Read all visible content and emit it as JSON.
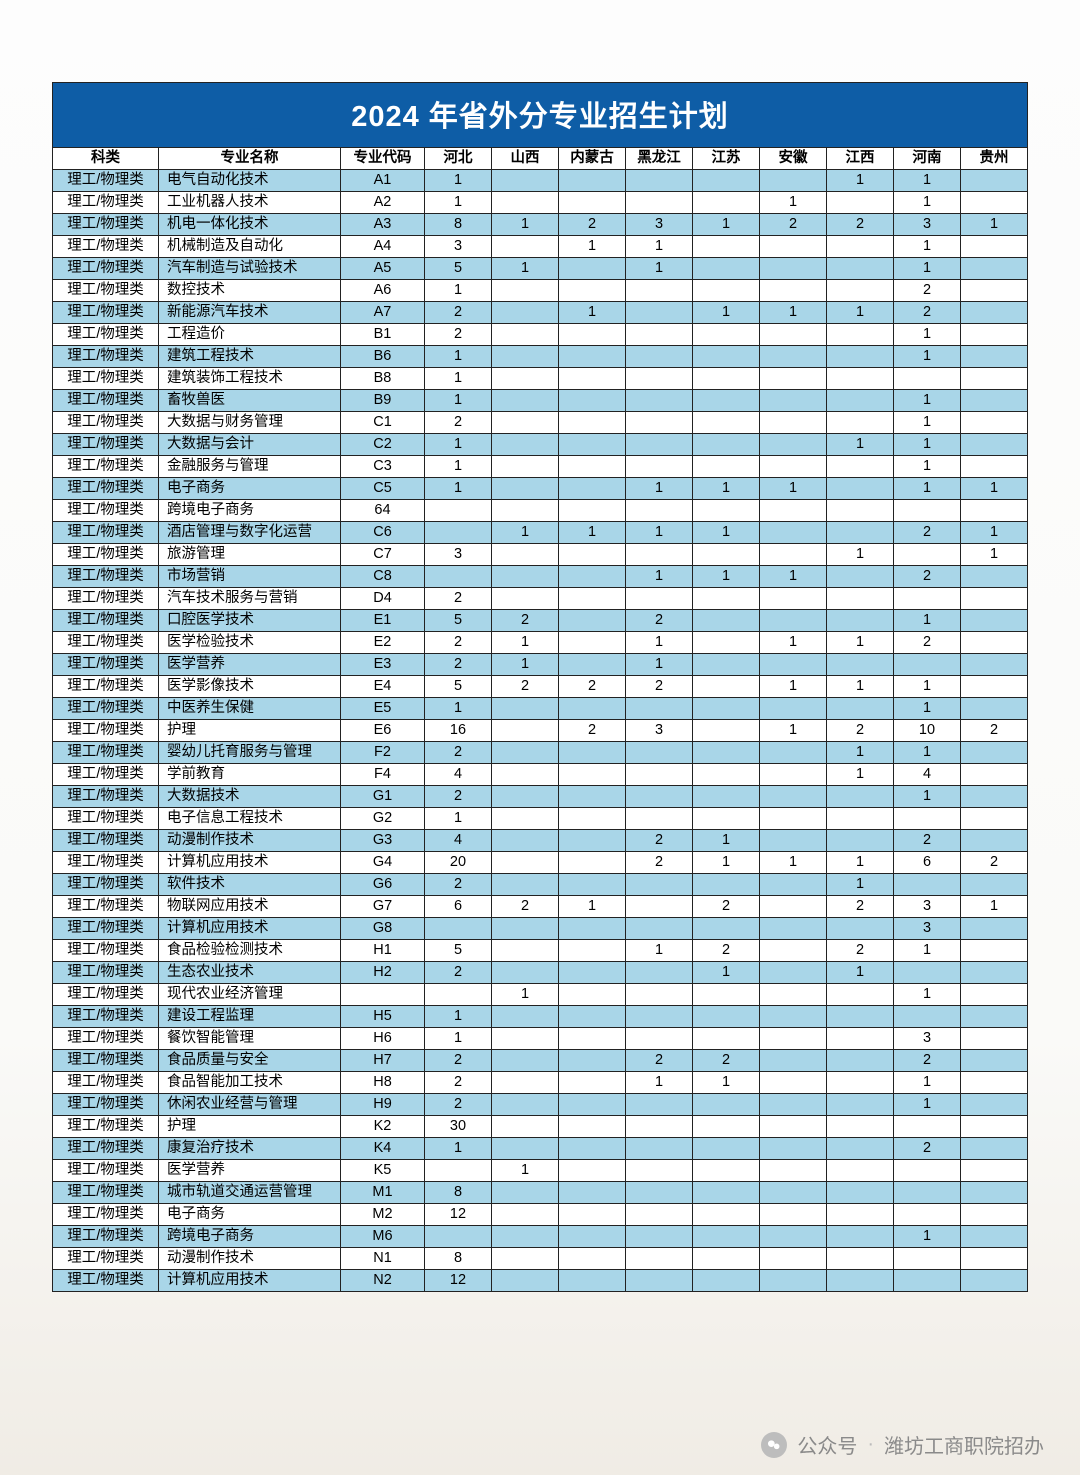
{
  "title": "2024 年省外分专业招生计划",
  "columns": [
    "科类",
    "专业名称",
    "专业代码",
    "河北",
    "山西",
    "内蒙古",
    "黑龙江",
    "江苏",
    "安徽",
    "江西",
    "河南",
    "贵州"
  ],
  "colors": {
    "header_bg": "#0e5da6",
    "header_fg": "#ffffff",
    "row_alt_bg": "#a9d6e8",
    "row_plain_bg": "#ffffff",
    "border": "#222222"
  },
  "footer": {
    "label": "公众号",
    "account": "潍坊工商职院招办"
  },
  "rows": [
    {
      "cat": "理工/物理类",
      "major": "电气自动化技术",
      "code": "A1",
      "v": [
        "1",
        "",
        "",
        "",
        "",
        "",
        "1",
        "1",
        ""
      ]
    },
    {
      "cat": "理工/物理类",
      "major": "工业机器人技术",
      "code": "A2",
      "v": [
        "1",
        "",
        "",
        "",
        "",
        "1",
        "",
        "1",
        ""
      ]
    },
    {
      "cat": "理工/物理类",
      "major": "机电一体化技术",
      "code": "A3",
      "v": [
        "8",
        "1",
        "2",
        "3",
        "1",
        "2",
        "2",
        "3",
        "1"
      ]
    },
    {
      "cat": "理工/物理类",
      "major": "机械制造及自动化",
      "code": "A4",
      "v": [
        "3",
        "",
        "1",
        "1",
        "",
        "",
        "",
        "1",
        ""
      ]
    },
    {
      "cat": "理工/物理类",
      "major": "汽车制造与试验技术",
      "code": "A5",
      "v": [
        "5",
        "1",
        "",
        "1",
        "",
        "",
        "",
        "1",
        ""
      ]
    },
    {
      "cat": "理工/物理类",
      "major": "数控技术",
      "code": "A6",
      "v": [
        "1",
        "",
        "",
        "",
        "",
        "",
        "",
        "2",
        ""
      ]
    },
    {
      "cat": "理工/物理类",
      "major": "新能源汽车技术",
      "code": "A7",
      "v": [
        "2",
        "",
        "1",
        "",
        "1",
        "1",
        "1",
        "2",
        ""
      ]
    },
    {
      "cat": "理工/物理类",
      "major": "工程造价",
      "code": "B1",
      "v": [
        "2",
        "",
        "",
        "",
        "",
        "",
        "",
        "1",
        ""
      ]
    },
    {
      "cat": "理工/物理类",
      "major": "建筑工程技术",
      "code": "B6",
      "v": [
        "1",
        "",
        "",
        "",
        "",
        "",
        "",
        "1",
        ""
      ]
    },
    {
      "cat": "理工/物理类",
      "major": "建筑装饰工程技术",
      "code": "B8",
      "v": [
        "1",
        "",
        "",
        "",
        "",
        "",
        "",
        "",
        ""
      ]
    },
    {
      "cat": "理工/物理类",
      "major": "畜牧兽医",
      "code": "B9",
      "v": [
        "1",
        "",
        "",
        "",
        "",
        "",
        "",
        "1",
        ""
      ]
    },
    {
      "cat": "理工/物理类",
      "major": "大数据与财务管理",
      "code": "C1",
      "v": [
        "2",
        "",
        "",
        "",
        "",
        "",
        "",
        "1",
        ""
      ]
    },
    {
      "cat": "理工/物理类",
      "major": "大数据与会计",
      "code": "C2",
      "v": [
        "1",
        "",
        "",
        "",
        "",
        "",
        "1",
        "1",
        ""
      ]
    },
    {
      "cat": "理工/物理类",
      "major": "金融服务与管理",
      "code": "C3",
      "v": [
        "1",
        "",
        "",
        "",
        "",
        "",
        "",
        "1",
        ""
      ]
    },
    {
      "cat": "理工/物理类",
      "major": "电子商务",
      "code": "C5",
      "v": [
        "1",
        "",
        "",
        "1",
        "1",
        "1",
        "",
        "1",
        "1"
      ]
    },
    {
      "cat": "理工/物理类",
      "major": "跨境电子商务",
      "code": "64",
      "v": [
        "",
        "",
        "",
        "",
        "",
        "",
        "",
        "",
        ""
      ]
    },
    {
      "cat": "理工/物理类",
      "major": "酒店管理与数字化运营",
      "code": "C6",
      "v": [
        "",
        "1",
        "1",
        "1",
        "1",
        "",
        "",
        "2",
        "1"
      ]
    },
    {
      "cat": "理工/物理类",
      "major": "旅游管理",
      "code": "C7",
      "v": [
        "3",
        "",
        "",
        "",
        "",
        "",
        "1",
        "",
        "1"
      ]
    },
    {
      "cat": "理工/物理类",
      "major": "市场营销",
      "code": "C8",
      "v": [
        "",
        "",
        "",
        "1",
        "1",
        "1",
        "",
        "2",
        ""
      ]
    },
    {
      "cat": "理工/物理类",
      "major": "汽车技术服务与营销",
      "code": "D4",
      "v": [
        "2",
        "",
        "",
        "",
        "",
        "",
        "",
        "",
        ""
      ]
    },
    {
      "cat": "理工/物理类",
      "major": "口腔医学技术",
      "code": "E1",
      "v": [
        "5",
        "2",
        "",
        "2",
        "",
        "",
        "",
        "1",
        ""
      ]
    },
    {
      "cat": "理工/物理类",
      "major": "医学检验技术",
      "code": "E2",
      "v": [
        "2",
        "1",
        "",
        "1",
        "",
        "1",
        "1",
        "2",
        ""
      ]
    },
    {
      "cat": "理工/物理类",
      "major": "医学营养",
      "code": "E3",
      "v": [
        "2",
        "1",
        "",
        "1",
        "",
        "",
        "",
        "",
        ""
      ]
    },
    {
      "cat": "理工/物理类",
      "major": "医学影像技术",
      "code": "E4",
      "v": [
        "5",
        "2",
        "2",
        "2",
        "",
        "1",
        "1",
        "1",
        ""
      ]
    },
    {
      "cat": "理工/物理类",
      "major": "中医养生保健",
      "code": "E5",
      "v": [
        "1",
        "",
        "",
        "",
        "",
        "",
        "",
        "1",
        ""
      ]
    },
    {
      "cat": "理工/物理类",
      "major": "护理",
      "code": "E6",
      "v": [
        "16",
        "",
        "2",
        "3",
        "",
        "1",
        "2",
        "10",
        "2"
      ]
    },
    {
      "cat": "理工/物理类",
      "major": "婴幼儿托育服务与管理",
      "code": "F2",
      "v": [
        "2",
        "",
        "",
        "",
        "",
        "",
        "1",
        "1",
        ""
      ]
    },
    {
      "cat": "理工/物理类",
      "major": "学前教育",
      "code": "F4",
      "v": [
        "4",
        "",
        "",
        "",
        "",
        "",
        "1",
        "4",
        ""
      ]
    },
    {
      "cat": "理工/物理类",
      "major": "大数据技术",
      "code": "G1",
      "v": [
        "2",
        "",
        "",
        "",
        "",
        "",
        "",
        "1",
        ""
      ]
    },
    {
      "cat": "理工/物理类",
      "major": "电子信息工程技术",
      "code": "G2",
      "v": [
        "1",
        "",
        "",
        "",
        "",
        "",
        "",
        "",
        ""
      ]
    },
    {
      "cat": "理工/物理类",
      "major": "动漫制作技术",
      "code": "G3",
      "v": [
        "4",
        "",
        "",
        "2",
        "1",
        "",
        "",
        "2",
        ""
      ]
    },
    {
      "cat": "理工/物理类",
      "major": "计算机应用技术",
      "code": "G4",
      "v": [
        "20",
        "",
        "",
        "2",
        "1",
        "1",
        "1",
        "6",
        "2"
      ]
    },
    {
      "cat": "理工/物理类",
      "major": "软件技术",
      "code": "G6",
      "v": [
        "2",
        "",
        "",
        "",
        "",
        "",
        "1",
        "",
        ""
      ]
    },
    {
      "cat": "理工/物理类",
      "major": "物联网应用技术",
      "code": "G7",
      "v": [
        "6",
        "2",
        "1",
        "",
        "2",
        "",
        "2",
        "3",
        "1"
      ]
    },
    {
      "cat": "理工/物理类",
      "major": "计算机应用技术",
      "code": "G8",
      "v": [
        "",
        "",
        "",
        "",
        "",
        "",
        "",
        "3",
        ""
      ]
    },
    {
      "cat": "理工/物理类",
      "major": "食品检验检测技术",
      "code": "H1",
      "v": [
        "5",
        "",
        "",
        "1",
        "2",
        "",
        "2",
        "1",
        ""
      ]
    },
    {
      "cat": "理工/物理类",
      "major": "生态农业技术",
      "code": "H2",
      "v": [
        "2",
        "",
        "",
        "",
        "1",
        "",
        "1",
        "",
        ""
      ]
    },
    {
      "cat": "理工/物理类",
      "major": "现代农业经济管理",
      "code": "",
      "v": [
        "",
        "1",
        "",
        "",
        "",
        "",
        "",
        "1",
        ""
      ]
    },
    {
      "cat": "理工/物理类",
      "major": "建设工程监理",
      "code": "H5",
      "v": [
        "1",
        "",
        "",
        "",
        "",
        "",
        "",
        "",
        ""
      ]
    },
    {
      "cat": "理工/物理类",
      "major": "餐饮智能管理",
      "code": "H6",
      "v": [
        "1",
        "",
        "",
        "",
        "",
        "",
        "",
        "3",
        ""
      ]
    },
    {
      "cat": "理工/物理类",
      "major": "食品质量与安全",
      "code": "H7",
      "v": [
        "2",
        "",
        "",
        "2",
        "2",
        "",
        "",
        "2",
        ""
      ]
    },
    {
      "cat": "理工/物理类",
      "major": "食品智能加工技术",
      "code": "H8",
      "v": [
        "2",
        "",
        "",
        "1",
        "1",
        "",
        "",
        "1",
        ""
      ]
    },
    {
      "cat": "理工/物理类",
      "major": "休闲农业经营与管理",
      "code": "H9",
      "v": [
        "2",
        "",
        "",
        "",
        "",
        "",
        "",
        "1",
        ""
      ]
    },
    {
      "cat": "理工/物理类",
      "major": "护理",
      "code": "K2",
      "v": [
        "30",
        "",
        "",
        "",
        "",
        "",
        "",
        "",
        ""
      ]
    },
    {
      "cat": "理工/物理类",
      "major": "康复治疗技术",
      "code": "K4",
      "v": [
        "1",
        "",
        "",
        "",
        "",
        "",
        "",
        "2",
        ""
      ]
    },
    {
      "cat": "理工/物理类",
      "major": "医学营养",
      "code": "K5",
      "v": [
        "",
        "1",
        "",
        "",
        "",
        "",
        "",
        "",
        ""
      ]
    },
    {
      "cat": "理工/物理类",
      "major": "城市轨道交通运营管理",
      "code": "M1",
      "v": [
        "8",
        "",
        "",
        "",
        "",
        "",
        "",
        "",
        ""
      ]
    },
    {
      "cat": "理工/物理类",
      "major": "电子商务",
      "code": "M2",
      "v": [
        "12",
        "",
        "",
        "",
        "",
        "",
        "",
        "",
        ""
      ]
    },
    {
      "cat": "理工/物理类",
      "major": "跨境电子商务",
      "code": "M6",
      "v": [
        "",
        "",
        "",
        "",
        "",
        "",
        "",
        "1",
        ""
      ]
    },
    {
      "cat": "理工/物理类",
      "major": "动漫制作技术",
      "code": "N1",
      "v": [
        "8",
        "",
        "",
        "",
        "",
        "",
        "",
        "",
        ""
      ]
    },
    {
      "cat": "理工/物理类",
      "major": "计算机应用技术",
      "code": "N2",
      "v": [
        "12",
        "",
        "",
        "",
        "",
        "",
        "",
        "",
        ""
      ]
    }
  ]
}
